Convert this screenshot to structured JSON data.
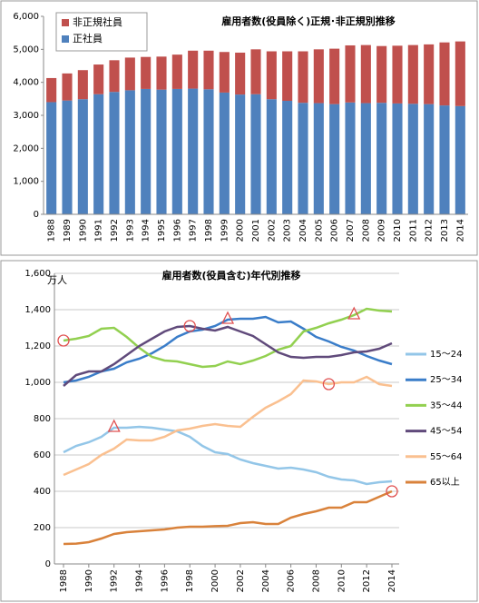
{
  "chart_data": [
    {
      "type": "bar",
      "stacked": true,
      "title": "雇用者数(役員除く)正規･非正規別推移",
      "categories": [
        "1988",
        "1989",
        "1990",
        "1991",
        "1992",
        "1993",
        "1994",
        "1995",
        "1996",
        "1997",
        "1998",
        "1999",
        "2000",
        "2001",
        "2002",
        "2003",
        "2004",
        "2005",
        "2006",
        "2007",
        "2008",
        "2009",
        "2010",
        "2011",
        "2012",
        "2013",
        "2014"
      ],
      "series": [
        {
          "name": "正社員",
          "color": "#4f81bd",
          "values": [
            3400,
            3450,
            3490,
            3640,
            3710,
            3760,
            3800,
            3780,
            3800,
            3810,
            3790,
            3690,
            3630,
            3640,
            3490,
            3440,
            3380,
            3370,
            3340,
            3390,
            3370,
            3380,
            3360,
            3350,
            3340,
            3300,
            3280
          ]
        },
        {
          "name": "非正規社員",
          "color": "#c0504d",
          "values": [
            730,
            820,
            880,
            900,
            960,
            990,
            970,
            1000,
            1040,
            1150,
            1170,
            1230,
            1270,
            1360,
            1450,
            1500,
            1560,
            1630,
            1680,
            1730,
            1760,
            1720,
            1750,
            1780,
            1810,
            1910,
            1960
          ]
        }
      ],
      "ylim": [
        0,
        6000
      ],
      "yticks": [
        0,
        {
          "value": 1000,
          "label": "1,000"
        },
        {
          "value": 2000,
          "label": "2,000"
        },
        {
          "value": 3000,
          "label": "3,000"
        },
        {
          "value": 4000,
          "label": "4,000"
        },
        {
          "value": 5000,
          "label": "5,000"
        },
        {
          "value": 6000,
          "label": "6,000"
        }
      ],
      "legend": "top-left"
    },
    {
      "type": "line",
      "title": "雇用者数(役員含む)年代別推移",
      "unit_label": "万人",
      "x": [
        1988,
        1989,
        1990,
        1991,
        1992,
        1993,
        1994,
        1995,
        1996,
        1997,
        1998,
        1999,
        2000,
        2001,
        2002,
        2003,
        2004,
        2005,
        2006,
        2007,
        2008,
        2009,
        2010,
        2011,
        2012,
        2013,
        2014
      ],
      "xlim": [
        1988,
        2014
      ],
      "xticks": [
        1988,
        1990,
        1992,
        1994,
        1996,
        1998,
        2000,
        2002,
        2004,
        2006,
        2008,
        2010,
        2012,
        2014
      ],
      "ylim": [
        0,
        1600
      ],
      "yticks": [
        0,
        200,
        400,
        600,
        800,
        {
          "value": 1000,
          "label": "1,000"
        },
        {
          "value": 1200,
          "label": "1,200"
        },
        {
          "value": 1400,
          "label": "1,400"
        },
        {
          "value": 1600,
          "label": "1,600"
        }
      ],
      "grid": true,
      "legend": "right",
      "series": [
        {
          "name": "15～24",
          "color": "#93c6e8",
          "values": [
            615,
            650,
            670,
            700,
            750,
            750,
            755,
            750,
            740,
            730,
            700,
            650,
            615,
            605,
            575,
            555,
            540,
            525,
            530,
            520,
            505,
            480,
            465,
            460,
            440,
            450,
            455
          ]
        },
        {
          "name": "25～34",
          "color": "#3a7dc9",
          "values": [
            1000,
            1010,
            1030,
            1060,
            1075,
            1110,
            1130,
            1160,
            1200,
            1250,
            1280,
            1290,
            1310,
            1345,
            1350,
            1350,
            1360,
            1330,
            1335,
            1295,
            1250,
            1225,
            1195,
            1175,
            1145,
            1120,
            1100
          ]
        },
        {
          "name": "35～44",
          "color": "#92d050",
          "values": [
            1230,
            1240,
            1255,
            1295,
            1300,
            1250,
            1190,
            1140,
            1120,
            1115,
            1100,
            1085,
            1090,
            1115,
            1100,
            1120,
            1145,
            1180,
            1200,
            1280,
            1300,
            1325,
            1345,
            1370,
            1405,
            1395,
            1390
          ]
        },
        {
          "name": "45～54",
          "color": "#604a7b",
          "values": [
            980,
            1040,
            1060,
            1060,
            1100,
            1150,
            1200,
            1240,
            1280,
            1305,
            1310,
            1295,
            1285,
            1305,
            1280,
            1255,
            1210,
            1165,
            1140,
            1135,
            1140,
            1140,
            1150,
            1165,
            1170,
            1185,
            1215
          ]
        },
        {
          "name": "55～64",
          "color": "#fac090",
          "values": [
            490,
            520,
            550,
            600,
            635,
            685,
            680,
            680,
            700,
            735,
            745,
            760,
            770,
            760,
            755,
            810,
            860,
            895,
            935,
            1010,
            1005,
            990,
            1000,
            1000,
            1030,
            990,
            980
          ]
        },
        {
          "name": "65以上",
          "color": "#d9823b",
          "values": [
            110,
            112,
            120,
            140,
            165,
            175,
            180,
            185,
            190,
            200,
            205,
            205,
            208,
            210,
            225,
            230,
            220,
            220,
            255,
            275,
            290,
            310,
            310,
            340,
            340,
            370,
            400
          ]
        }
      ]
    }
  ]
}
